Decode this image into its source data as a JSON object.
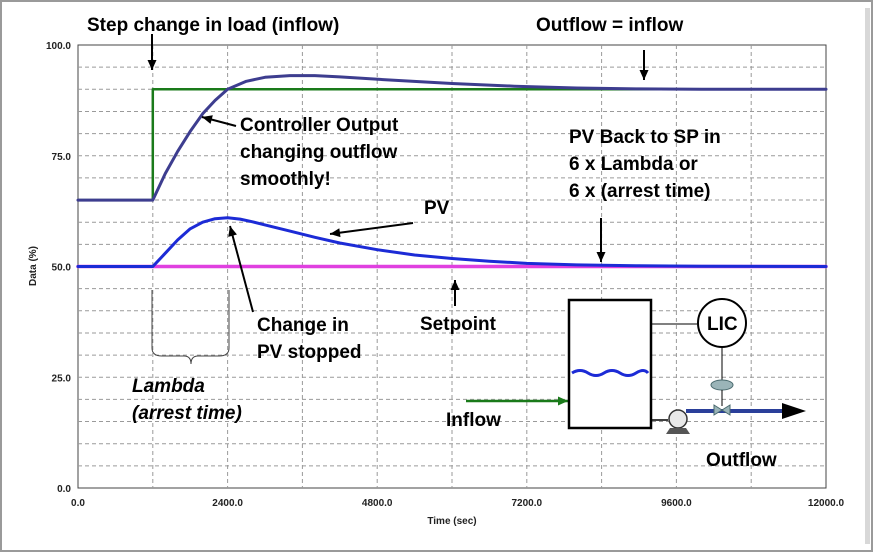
{
  "chart_data": {
    "type": "line",
    "title": "",
    "xlabel": "Time (sec)",
    "ylabel": "Data (%)",
    "xlim": [
      0,
      12000
    ],
    "ylim": [
      0,
      100
    ],
    "x_ticks": [
      "0.0",
      "2400.0",
      "4800.0",
      "7200.0",
      "9600.0",
      "12000.0"
    ],
    "y_ticks": [
      "0.0",
      "25.0",
      "50.0",
      "75.0",
      "100.0"
    ],
    "grid": true,
    "series": [
      {
        "key": "load",
        "color": "#1a7a1a",
        "x": [
          0,
          1200,
          1200,
          12000
        ],
        "y": [
          65,
          65,
          90,
          90
        ]
      },
      {
        "key": "controller_output",
        "color": "#3d3d8f",
        "x": [
          0,
          1200,
          1400,
          1600,
          1800,
          2000,
          2200,
          2400,
          2700,
          3000,
          3400,
          3800,
          4200,
          5000,
          6000,
          7000,
          8000,
          9000,
          10000,
          11000,
          12000
        ],
        "y": [
          65,
          65,
          71,
          76,
          80.5,
          84.5,
          87.5,
          90,
          91.8,
          92.7,
          93.1,
          93.1,
          92.8,
          92.1,
          91.3,
          90.7,
          90.3,
          90.1,
          90,
          90,
          90
        ]
      },
      {
        "key": "pv",
        "color": "#1c2bd6",
        "x": [
          0,
          1200,
          1400,
          1600,
          1800,
          2000,
          2200,
          2400,
          2600,
          2800,
          3000,
          3400,
          3800,
          4200,
          4800,
          5400,
          6000,
          6600,
          7200,
          8000,
          9000,
          10000,
          12000
        ],
        "y": [
          50,
          50,
          53,
          56,
          58.5,
          60,
          60.8,
          61,
          60.7,
          60.1,
          59.4,
          58,
          56.6,
          55.3,
          53.8,
          52.6,
          51.8,
          51.2,
          50.7,
          50.35,
          50.15,
          50.05,
          50
        ]
      },
      {
        "key": "setpoint",
        "color": "#e040e0",
        "x": [
          0,
          12000
        ],
        "y": [
          50,
          50
        ]
      }
    ],
    "annotations": [
      {
        "key": "step",
        "text": "Step change in load (inflow)"
      },
      {
        "key": "outflow_eq",
        "text": "Outflow = inflow"
      },
      {
        "key": "co1",
        "text": "Controller Output"
      },
      {
        "key": "co2",
        "text": "changing outflow"
      },
      {
        "key": "co3",
        "text": "smoothly!"
      },
      {
        "key": "pvback1",
        "text": "PV Back to SP in"
      },
      {
        "key": "pvback2",
        "text": "6 x Lambda    or"
      },
      {
        "key": "pvback3",
        "text": "6 x (arrest time)"
      },
      {
        "key": "pv",
        "text": "PV"
      },
      {
        "key": "change1",
        "text": "Change in"
      },
      {
        "key": "change2",
        "text": "PV stopped"
      },
      {
        "key": "setpoint",
        "text": "Setpoint"
      },
      {
        "key": "lambda1",
        "text": "Lambda"
      },
      {
        "key": "lambda2",
        "text": "(arrest time)"
      },
      {
        "key": "inflow",
        "text": "Inflow"
      },
      {
        "key": "outflow",
        "text": "Outflow"
      },
      {
        "key": "lic",
        "text": "LIC"
      }
    ]
  }
}
